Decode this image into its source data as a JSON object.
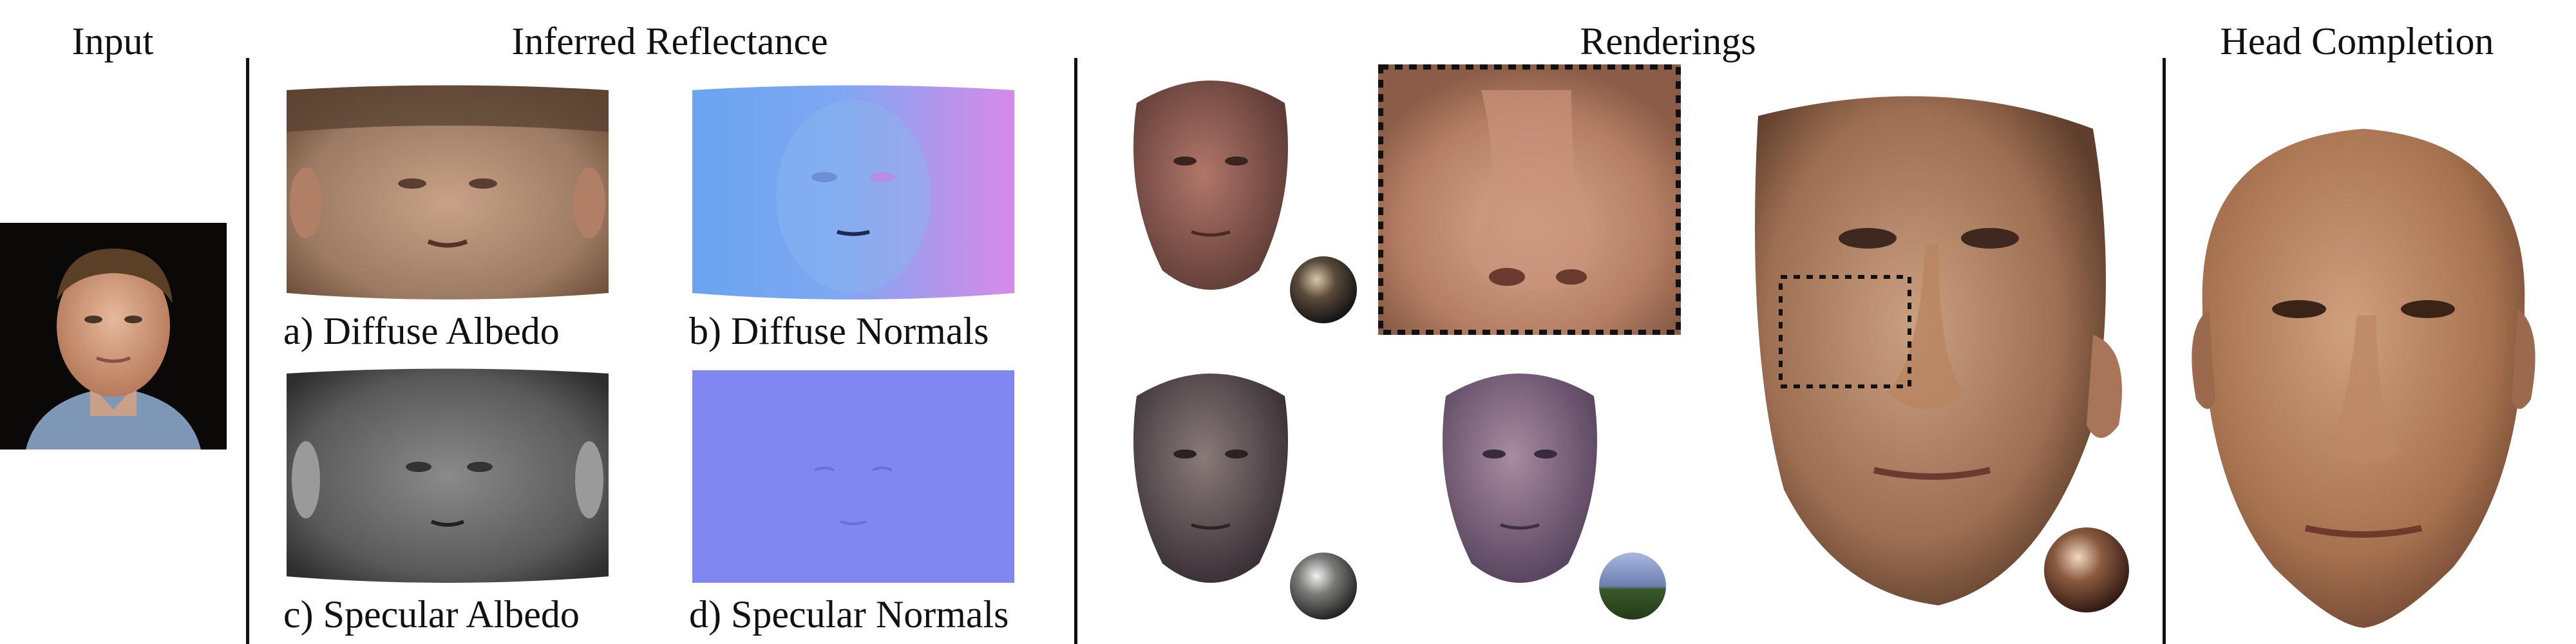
{
  "sections": {
    "input": "Input",
    "reflectance": "Inferred Reflectance",
    "renderings": "Renderings",
    "head_completion": "Head Completion"
  },
  "captions": {
    "diffuse_albedo": "a) Diffuse Albedo",
    "diffuse_normals": "b) Diffuse Normals",
    "specular_albedo": "c) Specular Albedo",
    "specular_normals": "d) Specular Normals"
  }
}
